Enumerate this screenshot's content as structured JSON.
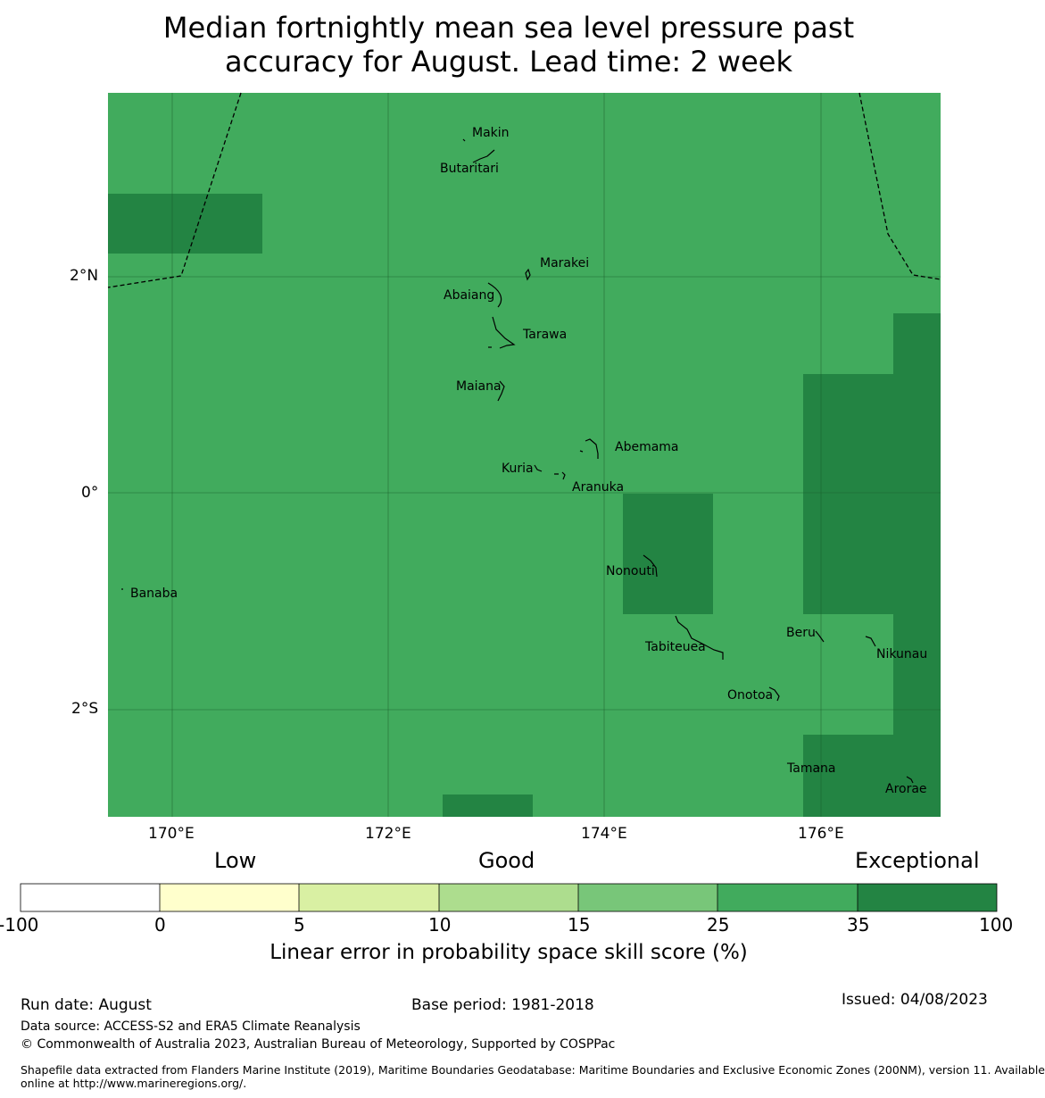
{
  "title_line1": "Median fortnightly mean sea level pressure past",
  "title_line2": "accuracy for August. Lead time: 2 week",
  "lat_labels": [
    "2°N",
    "0°",
    "2°S"
  ],
  "lon_labels": [
    "170°E",
    "172°E",
    "174°E",
    "176°E"
  ],
  "islands": [
    "Makin",
    "Butaritari",
    "Marakei",
    "Abaiang",
    "Tarawa",
    "Maiana",
    "Abemama",
    "Kuria",
    "Aranuka",
    "Nonouti",
    "Banaba",
    "Beru",
    "Tabiteuea",
    "Nikunau",
    "Onotoa",
    "Tamana",
    "Arorae"
  ],
  "colorbar": {
    "category_labels": [
      "Low",
      "Good",
      "Exceptional"
    ],
    "ticks": [
      "-100",
      "0",
      "5",
      "10",
      "15",
      "25",
      "35",
      "100"
    ],
    "colors": [
      "#ffffff",
      "#ffffcc",
      "#d9f0a3",
      "#addd8e",
      "#78c679",
      "#41ab5d",
      "#238443"
    ],
    "label": "Linear error in probability space skill score (%)"
  },
  "footer": {
    "run_date": "Run date: August",
    "base_period": "Base period: 1981-2018",
    "issued": "Issued: 04/08/2023",
    "data_source": "Data source: ACCESS-S2 and ERA5 Climate Reanalysis",
    "copyright": "© Commonwealth of Australia 2023, Australian Bureau of Meteorology, Supported by COSPPac",
    "shapefile_line1": "Shapefile data extracted from Flanders Marine Institute (2019), Maritime Boundaries Geodatabase: Maritime Boundaries and Exclusive Economic Zones (200NM), version 11. Available",
    "shapefile_line2": "online at http://www.marineregions.org/."
  },
  "map_colors": {
    "category_25_35": "#41ab5d",
    "category_35_100": "#238443"
  }
}
